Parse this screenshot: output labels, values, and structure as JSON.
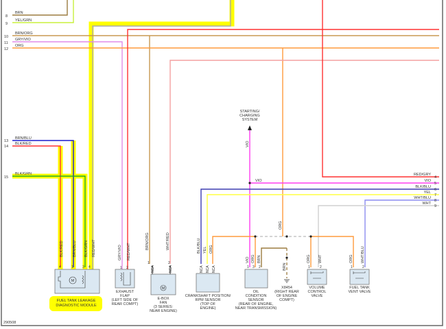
{
  "diagram_id": "290508",
  "left_connectors": [
    {
      "pin": "8",
      "wire": "BRN"
    },
    {
      "pin": "9",
      "wire": "YEL/GRN"
    },
    {
      "pin": "10",
      "wire": "BRN/ORG"
    },
    {
      "pin": "11",
      "wire": "GRY/VIO"
    },
    {
      "pin": "12",
      "wire": "ORG"
    },
    {
      "pin": "13",
      "wire": "BRN/BLU"
    },
    {
      "pin": "14",
      "wire": "BLK/RED"
    },
    {
      "pin": "15",
      "wire": "BLK/GRN"
    }
  ],
  "right_connectors": [
    {
      "pin": "4",
      "wire": "RED/GRY"
    },
    {
      "pin": "5",
      "wire": "VIO"
    },
    {
      "pin": "6",
      "wire": "BLK/BLU"
    },
    {
      "pin": "7",
      "wire": "YEL"
    },
    {
      "pin": "8",
      "wire": "WHT/BLU"
    },
    {
      "pin": "9",
      "wire": "WHT"
    }
  ],
  "components": {
    "fuel_tank_leakage": {
      "label1": "FUEL TANK LEAKAGE",
      "label2": "DIAGNOSTIC MODULE",
      "wires": [
        "BLK/RED",
        "BRN/BLU",
        "BLK/GRN",
        "RED/WHT"
      ],
      "pins": [
        "4",
        "1",
        "3",
        "4"
      ],
      "motor": "M"
    },
    "exhaust_flap": {
      "label1": "EXHAUST",
      "label2": "FLAP",
      "label3": "(LEFT SIDE OF",
      "label4": "REAR COMPT)",
      "wires": [
        "GRY/VIO",
        "RED/WHT"
      ],
      "pins": [
        "1",
        "2"
      ]
    },
    "ebox_fan": {
      "label1": "E-BOX",
      "label2": "FAN",
      "label3": "(3 SERIES:",
      "label4": "NEAR ENGINE)",
      "wires": [
        "BRN/ORG",
        "WHT/RED"
      ],
      "pins": [
        "1",
        "2"
      ],
      "nca": "NCA",
      "motor": "M"
    },
    "crankshaft": {
      "label1": "CRANKSHAFT POSITION/",
      "label2": "RPM SENSOR",
      "label3": "(TOP OF",
      "label4": "ENGINE)",
      "wires": [
        "BLK/BLU",
        "YEL",
        "ORG"
      ],
      "pins": [
        "3",
        "2",
        "1"
      ],
      "nca": "NCA"
    },
    "oil_condition": {
      "label1": "OIL",
      "label2": "CONDITION",
      "label3": "SENSOR",
      "label4": "(REAR OF ENGINE,",
      "label5": "NEAR TRANSMISSION)",
      "wires": [
        "VIO",
        "ORG",
        "BRN"
      ],
      "pins": [
        "1",
        "3",
        "2"
      ]
    },
    "ground": {
      "label1": "X8454",
      "label2": "(RIGHT REAR",
      "label3": "OF ENGINE",
      "label4": "COMPT)",
      "wire": "BRN"
    },
    "volume_control": {
      "label1": "VOLUME",
      "label2": "CONTROL",
      "label3": "VALVE",
      "wires": [
        "ORG",
        "WHT"
      ],
      "pins": [
        "1",
        "2"
      ]
    },
    "fuel_vent": {
      "label1": "FUEL TANK",
      "label2": "VENT VALVE",
      "wires": [
        "ORG",
        "WHT/BLU"
      ],
      "pins": [
        "1",
        "2"
      ]
    },
    "starting": {
      "label1": "STARTING/",
      "label2": "CHARGING",
      "label3": "SYSTEM",
      "wire": "VIO"
    },
    "splice_wire": "ORG"
  },
  "colors": {
    "BRN": "#9b7b3f",
    "YEL/GRN": "#c8f03c",
    "BRN/ORG": "#c89850",
    "GRY/VIO": "#e08ce8",
    "ORG": "#ff9a3c",
    "RED": "#ff3030",
    "PINK": "#f4a0a0",
    "VIO": "#ff3cf0",
    "BLK/BLU": "#3c3cb0",
    "YEL": "#ffff40",
    "WHT/BLU": "#8c8cf0",
    "WHT": "#d0d0d0",
    "highlight": "#ffff00"
  }
}
